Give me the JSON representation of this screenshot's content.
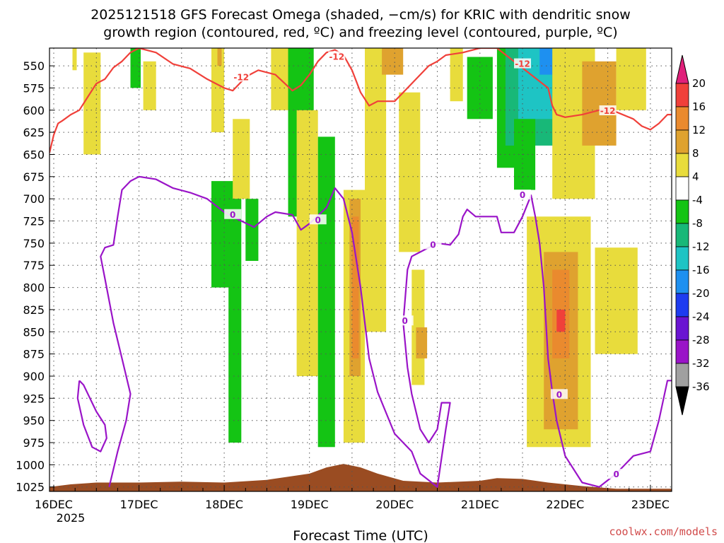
{
  "chart_data": {
    "type": "heatmap",
    "title_lines": [
      "2025121518 GFS Forecast Omega (shaded, −cm/s) for KRIC with dendritic snow",
      "growth region (contoured, red, ºC) and freezing level (contoured, purple, ºC)"
    ],
    "xlabel": "Forecast Time (UTC)",
    "ylabel": "",
    "x_ticks": [
      "16DEC",
      "17DEC",
      "18DEC",
      "19DEC",
      "20DEC",
      "21DEC",
      "22DEC",
      "23DEC"
    ],
    "x_year_label": "2025",
    "x_range_days": [
      15.95,
      23.25
    ],
    "y_ticks": [
      550,
      575,
      600,
      625,
      650,
      675,
      700,
      725,
      750,
      775,
      800,
      825,
      850,
      875,
      900,
      925,
      950,
      975,
      1000,
      1025
    ],
    "y_range": [
      530,
      1030
    ],
    "y_inverted": true,
    "grid": true,
    "colorbar": {
      "ticks": [
        20,
        16,
        12,
        8,
        4,
        -4,
        -8,
        -12,
        -16,
        -20,
        -24,
        -28,
        -32,
        -36
      ],
      "bins": [
        {
          "from": 20,
          "to": 16,
          "color": "#f0403a"
        },
        {
          "from": 16,
          "to": 12,
          "color": "#ea8a2e"
        },
        {
          "from": 12,
          "to": 8,
          "color": "#dfa22f"
        },
        {
          "from": 8,
          "to": 4,
          "color": "#e8dc3c"
        },
        {
          "from": 4,
          "to": -4,
          "color": "#ffffff"
        },
        {
          "from": -4,
          "to": -8,
          "color": "#14c414"
        },
        {
          "from": -8,
          "to": -12,
          "color": "#18b878"
        },
        {
          "from": -12,
          "to": -16,
          "color": "#1ec4c4"
        },
        {
          "from": -16,
          "to": -20,
          "color": "#1e90f0"
        },
        {
          "from": -20,
          "to": -24,
          "color": "#1e3cf0"
        },
        {
          "from": -24,
          "to": -28,
          "color": "#6a14d2"
        },
        {
          "from": -28,
          "to": -32,
          "color": "#9a14c8"
        },
        {
          "from": -32,
          "to": -36,
          "color": "#a0a0a0"
        }
      ],
      "over_color": "#e0207a",
      "under_color": "#000000"
    },
    "contour_labels": {
      "dgz": "-12",
      "freezing": "0"
    },
    "colors": {
      "dgz_contour": "#f0403a",
      "freezing_contour": "#9a14c8",
      "terrain": "#9a4c22"
    },
    "dgz_contour_pts": [
      [
        15.95,
        648
      ],
      [
        16.0,
        628
      ],
      [
        16.05,
        615
      ],
      [
        16.1,
        612
      ],
      [
        16.2,
        605
      ],
      [
        16.3,
        600
      ],
      [
        16.4,
        585
      ],
      [
        16.5,
        570
      ],
      [
        16.6,
        565
      ],
      [
        16.7,
        552
      ],
      [
        16.8,
        545
      ],
      [
        16.9,
        535
      ],
      [
        17.0,
        530
      ],
      [
        17.2,
        535
      ],
      [
        17.4,
        548
      ],
      [
        17.6,
        553
      ],
      [
        17.8,
        565
      ],
      [
        18.0,
        575
      ],
      [
        18.1,
        578
      ],
      [
        18.2,
        568
      ],
      [
        18.3,
        560
      ],
      [
        18.4,
        555
      ],
      [
        18.6,
        560
      ],
      [
        18.8,
        578
      ],
      [
        18.9,
        572
      ],
      [
        19.0,
        560
      ],
      [
        19.1,
        545
      ],
      [
        19.2,
        535
      ],
      [
        19.3,
        532
      ],
      [
        19.4,
        538
      ],
      [
        19.5,
        555
      ],
      [
        19.6,
        580
      ],
      [
        19.7,
        595
      ],
      [
        19.8,
        590
      ],
      [
        20.0,
        590
      ],
      [
        20.1,
        580
      ],
      [
        20.2,
        570
      ],
      [
        20.3,
        560
      ],
      [
        20.4,
        550
      ],
      [
        20.5,
        545
      ],
      [
        20.6,
        538
      ],
      [
        20.8,
        535
      ],
      [
        21.0,
        530
      ],
      [
        21.2,
        530
      ],
      [
        21.4,
        545
      ],
      [
        21.6,
        560
      ],
      [
        21.8,
        575
      ],
      [
        21.85,
        595
      ],
      [
        21.9,
        605
      ],
      [
        22.0,
        608
      ],
      [
        22.2,
        605
      ],
      [
        22.4,
        600
      ],
      [
        22.6,
        602
      ],
      [
        22.8,
        610
      ],
      [
        22.9,
        618
      ],
      [
        23.0,
        622
      ],
      [
        23.1,
        615
      ],
      [
        23.2,
        605
      ],
      [
        23.25,
        605
      ]
    ],
    "freezing_contour_pts": [
      [
        16.65,
        1025
      ],
      [
        16.75,
        985
      ],
      [
        16.85,
        950
      ],
      [
        16.9,
        920
      ],
      [
        16.8,
        880
      ],
      [
        16.7,
        840
      ],
      [
        16.6,
        790
      ],
      [
        16.55,
        765
      ],
      [
        16.6,
        755
      ],
      [
        16.7,
        752
      ],
      [
        16.75,
        720
      ],
      [
        16.8,
        690
      ],
      [
        16.9,
        680
      ],
      [
        17.0,
        675
      ],
      [
        17.2,
        678
      ],
      [
        17.4,
        688
      ],
      [
        17.6,
        693
      ],
      [
        17.8,
        700
      ],
      [
        18.0,
        715
      ],
      [
        18.1,
        720
      ],
      [
        18.2,
        725
      ],
      [
        18.35,
        732
      ],
      [
        18.5,
        720
      ],
      [
        18.6,
        715
      ],
      [
        18.8,
        718
      ],
      [
        18.9,
        735
      ],
      [
        19.0,
        728
      ],
      [
        19.2,
        710
      ],
      [
        19.3,
        688
      ],
      [
        19.4,
        700
      ],
      [
        19.5,
        738
      ],
      [
        19.6,
        800
      ],
      [
        19.7,
        880
      ],
      [
        19.8,
        918
      ],
      [
        20.0,
        965
      ],
      [
        20.2,
        985
      ],
      [
        20.3,
        1010
      ],
      [
        20.5,
        1025
      ],
      [
        20.6,
        960
      ],
      [
        20.65,
        930
      ],
      [
        20.55,
        930
      ],
      [
        20.5,
        960
      ],
      [
        20.4,
        975
      ],
      [
        20.3,
        960
      ],
      [
        20.2,
        920
      ],
      [
        20.15,
        890
      ],
      [
        20.1,
        840
      ],
      [
        20.15,
        780
      ],
      [
        20.2,
        765
      ],
      [
        20.3,
        760
      ],
      [
        20.5,
        750
      ],
      [
        20.65,
        752
      ],
      [
        20.75,
        740
      ],
      [
        20.8,
        720
      ],
      [
        20.85,
        712
      ],
      [
        20.95,
        720
      ],
      [
        21.1,
        720
      ],
      [
        21.2,
        720
      ],
      [
        21.25,
        738
      ],
      [
        21.4,
        738
      ],
      [
        21.5,
        720
      ],
      [
        21.6,
        696
      ],
      [
        21.65,
        720
      ],
      [
        21.7,
        750
      ],
      [
        21.75,
        800
      ],
      [
        21.8,
        880
      ],
      [
        21.85,
        918
      ],
      [
        21.9,
        950
      ],
      [
        22.0,
        990
      ],
      [
        22.2,
        1020
      ],
      [
        22.4,
        1025
      ],
      [
        22.6,
        1010
      ],
      [
        22.8,
        990
      ],
      [
        23.0,
        985
      ],
      [
        23.1,
        950
      ],
      [
        23.2,
        905
      ],
      [
        23.25,
        905
      ]
    ],
    "freezing_loop_pts": [
      [
        16.3,
        905
      ],
      [
        16.35,
        910
      ],
      [
        16.5,
        940
      ],
      [
        16.6,
        955
      ],
      [
        16.62,
        970
      ],
      [
        16.55,
        985
      ],
      [
        16.45,
        980
      ],
      [
        16.35,
        955
      ],
      [
        16.28,
        925
      ],
      [
        16.3,
        905
      ]
    ],
    "omega_patches": [
      {
        "x0": 16.22,
        "x1": 16.27,
        "p0": 530,
        "p1": 555,
        "value": 5
      },
      {
        "x0": 16.35,
        "x1": 16.55,
        "p0": 535,
        "p1": 650,
        "value": 5
      },
      {
        "x0": 16.9,
        "x1": 17.02,
        "p0": 530,
        "p1": 575,
        "value": -5
      },
      {
        "x0": 17.05,
        "x1": 17.2,
        "p0": 545,
        "p1": 600,
        "value": 5
      },
      {
        "x0": 17.85,
        "x1": 18.0,
        "p0": 530,
        "p1": 625,
        "value": 5
      },
      {
        "x0": 17.92,
        "x1": 17.97,
        "p0": 530,
        "p1": 550,
        "value": 10
      },
      {
        "x0": 17.85,
        "x1": 18.15,
        "p0": 680,
        "p1": 800,
        "value": -6
      },
      {
        "x0": 18.05,
        "x1": 18.2,
        "p0": 690,
        "p1": 975,
        "value": -6
      },
      {
        "x0": 18.1,
        "x1": 18.3,
        "p0": 610,
        "p1": 700,
        "value": 5
      },
      {
        "x0": 18.25,
        "x1": 18.4,
        "p0": 700,
        "p1": 770,
        "value": -6
      },
      {
        "x0": 18.55,
        "x1": 18.75,
        "p0": 530,
        "p1": 600,
        "value": 5
      },
      {
        "x0": 18.75,
        "x1": 19.05,
        "p0": 530,
        "p1": 720,
        "value": -6
      },
      {
        "x0": 18.85,
        "x1": 19.1,
        "p0": 600,
        "p1": 900,
        "value": 5
      },
      {
        "x0": 19.1,
        "x1": 19.3,
        "p0": 630,
        "p1": 980,
        "value": -6
      },
      {
        "x0": 19.4,
        "x1": 19.65,
        "p0": 690,
        "p1": 975,
        "value": 5
      },
      {
        "x0": 19.47,
        "x1": 19.6,
        "p0": 700,
        "p1": 900,
        "value": 10
      },
      {
        "x0": 19.5,
        "x1": 19.58,
        "p0": 720,
        "p1": 880,
        "value": 14
      },
      {
        "x0": 19.65,
        "x1": 19.9,
        "p0": 530,
        "p1": 850,
        "value": 5
      },
      {
        "x0": 19.85,
        "x1": 20.1,
        "p0": 530,
        "p1": 560,
        "value": 10
      },
      {
        "x0": 20.05,
        "x1": 20.3,
        "p0": 580,
        "p1": 760,
        "value": 5
      },
      {
        "x0": 20.2,
        "x1": 20.35,
        "p0": 780,
        "p1": 910,
        "value": 5
      },
      {
        "x0": 20.25,
        "x1": 20.38,
        "p0": 845,
        "p1": 880,
        "value": 10
      },
      {
        "x0": 20.65,
        "x1": 20.8,
        "p0": 530,
        "p1": 590,
        "value": 5
      },
      {
        "x0": 20.85,
        "x1": 21.15,
        "p0": 540,
        "p1": 610,
        "value": -6
      },
      {
        "x0": 21.2,
        "x1": 21.45,
        "p0": 530,
        "p1": 665,
        "value": -6
      },
      {
        "x0": 21.3,
        "x1": 21.9,
        "p0": 530,
        "p1": 640,
        "value": -10
      },
      {
        "x0": 21.45,
        "x1": 21.85,
        "p0": 530,
        "p1": 610,
        "value": -14
      },
      {
        "x0": 21.7,
        "x1": 21.85,
        "p0": 530,
        "p1": 560,
        "value": -18
      },
      {
        "x0": 21.4,
        "x1": 21.65,
        "p0": 610,
        "p1": 690,
        "value": -6
      },
      {
        "x0": 21.6,
        "x1": 21.7,
        "p0": 800,
        "p1": 815,
        "value": -6
      },
      {
        "x0": 21.85,
        "x1": 22.35,
        "p0": 530,
        "p1": 700,
        "value": 5
      },
      {
        "x0": 22.2,
        "x1": 22.6,
        "p0": 545,
        "p1": 640,
        "value": 10
      },
      {
        "x0": 22.6,
        "x1": 22.95,
        "p0": 530,
        "p1": 600,
        "value": 5
      },
      {
        "x0": 21.55,
        "x1": 22.3,
        "p0": 720,
        "p1": 980,
        "value": 5
      },
      {
        "x0": 21.75,
        "x1": 22.15,
        "p0": 760,
        "p1": 960,
        "value": 10
      },
      {
        "x0": 21.85,
        "x1": 22.05,
        "p0": 780,
        "p1": 880,
        "value": 14
      },
      {
        "x0": 21.9,
        "x1": 22.0,
        "p0": 825,
        "p1": 850,
        "value": 18
      },
      {
        "x0": 22.35,
        "x1": 22.85,
        "p0": 755,
        "p1": 875,
        "value": 5
      }
    ],
    "terrain_pts": [
      [
        15.95,
        1025
      ],
      [
        16.2,
        1022
      ],
      [
        16.5,
        1020
      ],
      [
        17.0,
        1020
      ],
      [
        17.5,
        1019
      ],
      [
        18.0,
        1020
      ],
      [
        18.5,
        1017
      ],
      [
        19.0,
        1010
      ],
      [
        19.2,
        1003
      ],
      [
        19.4,
        999
      ],
      [
        19.6,
        1003
      ],
      [
        19.8,
        1010
      ],
      [
        20.1,
        1018
      ],
      [
        20.5,
        1020
      ],
      [
        21.0,
        1018
      ],
      [
        21.2,
        1015
      ],
      [
        21.5,
        1016
      ],
      [
        21.8,
        1020
      ],
      [
        22.2,
        1024
      ],
      [
        22.6,
        1027
      ],
      [
        23.0,
        1027
      ],
      [
        23.25,
        1027
      ]
    ]
  },
  "credit": "coolwx.com/models"
}
